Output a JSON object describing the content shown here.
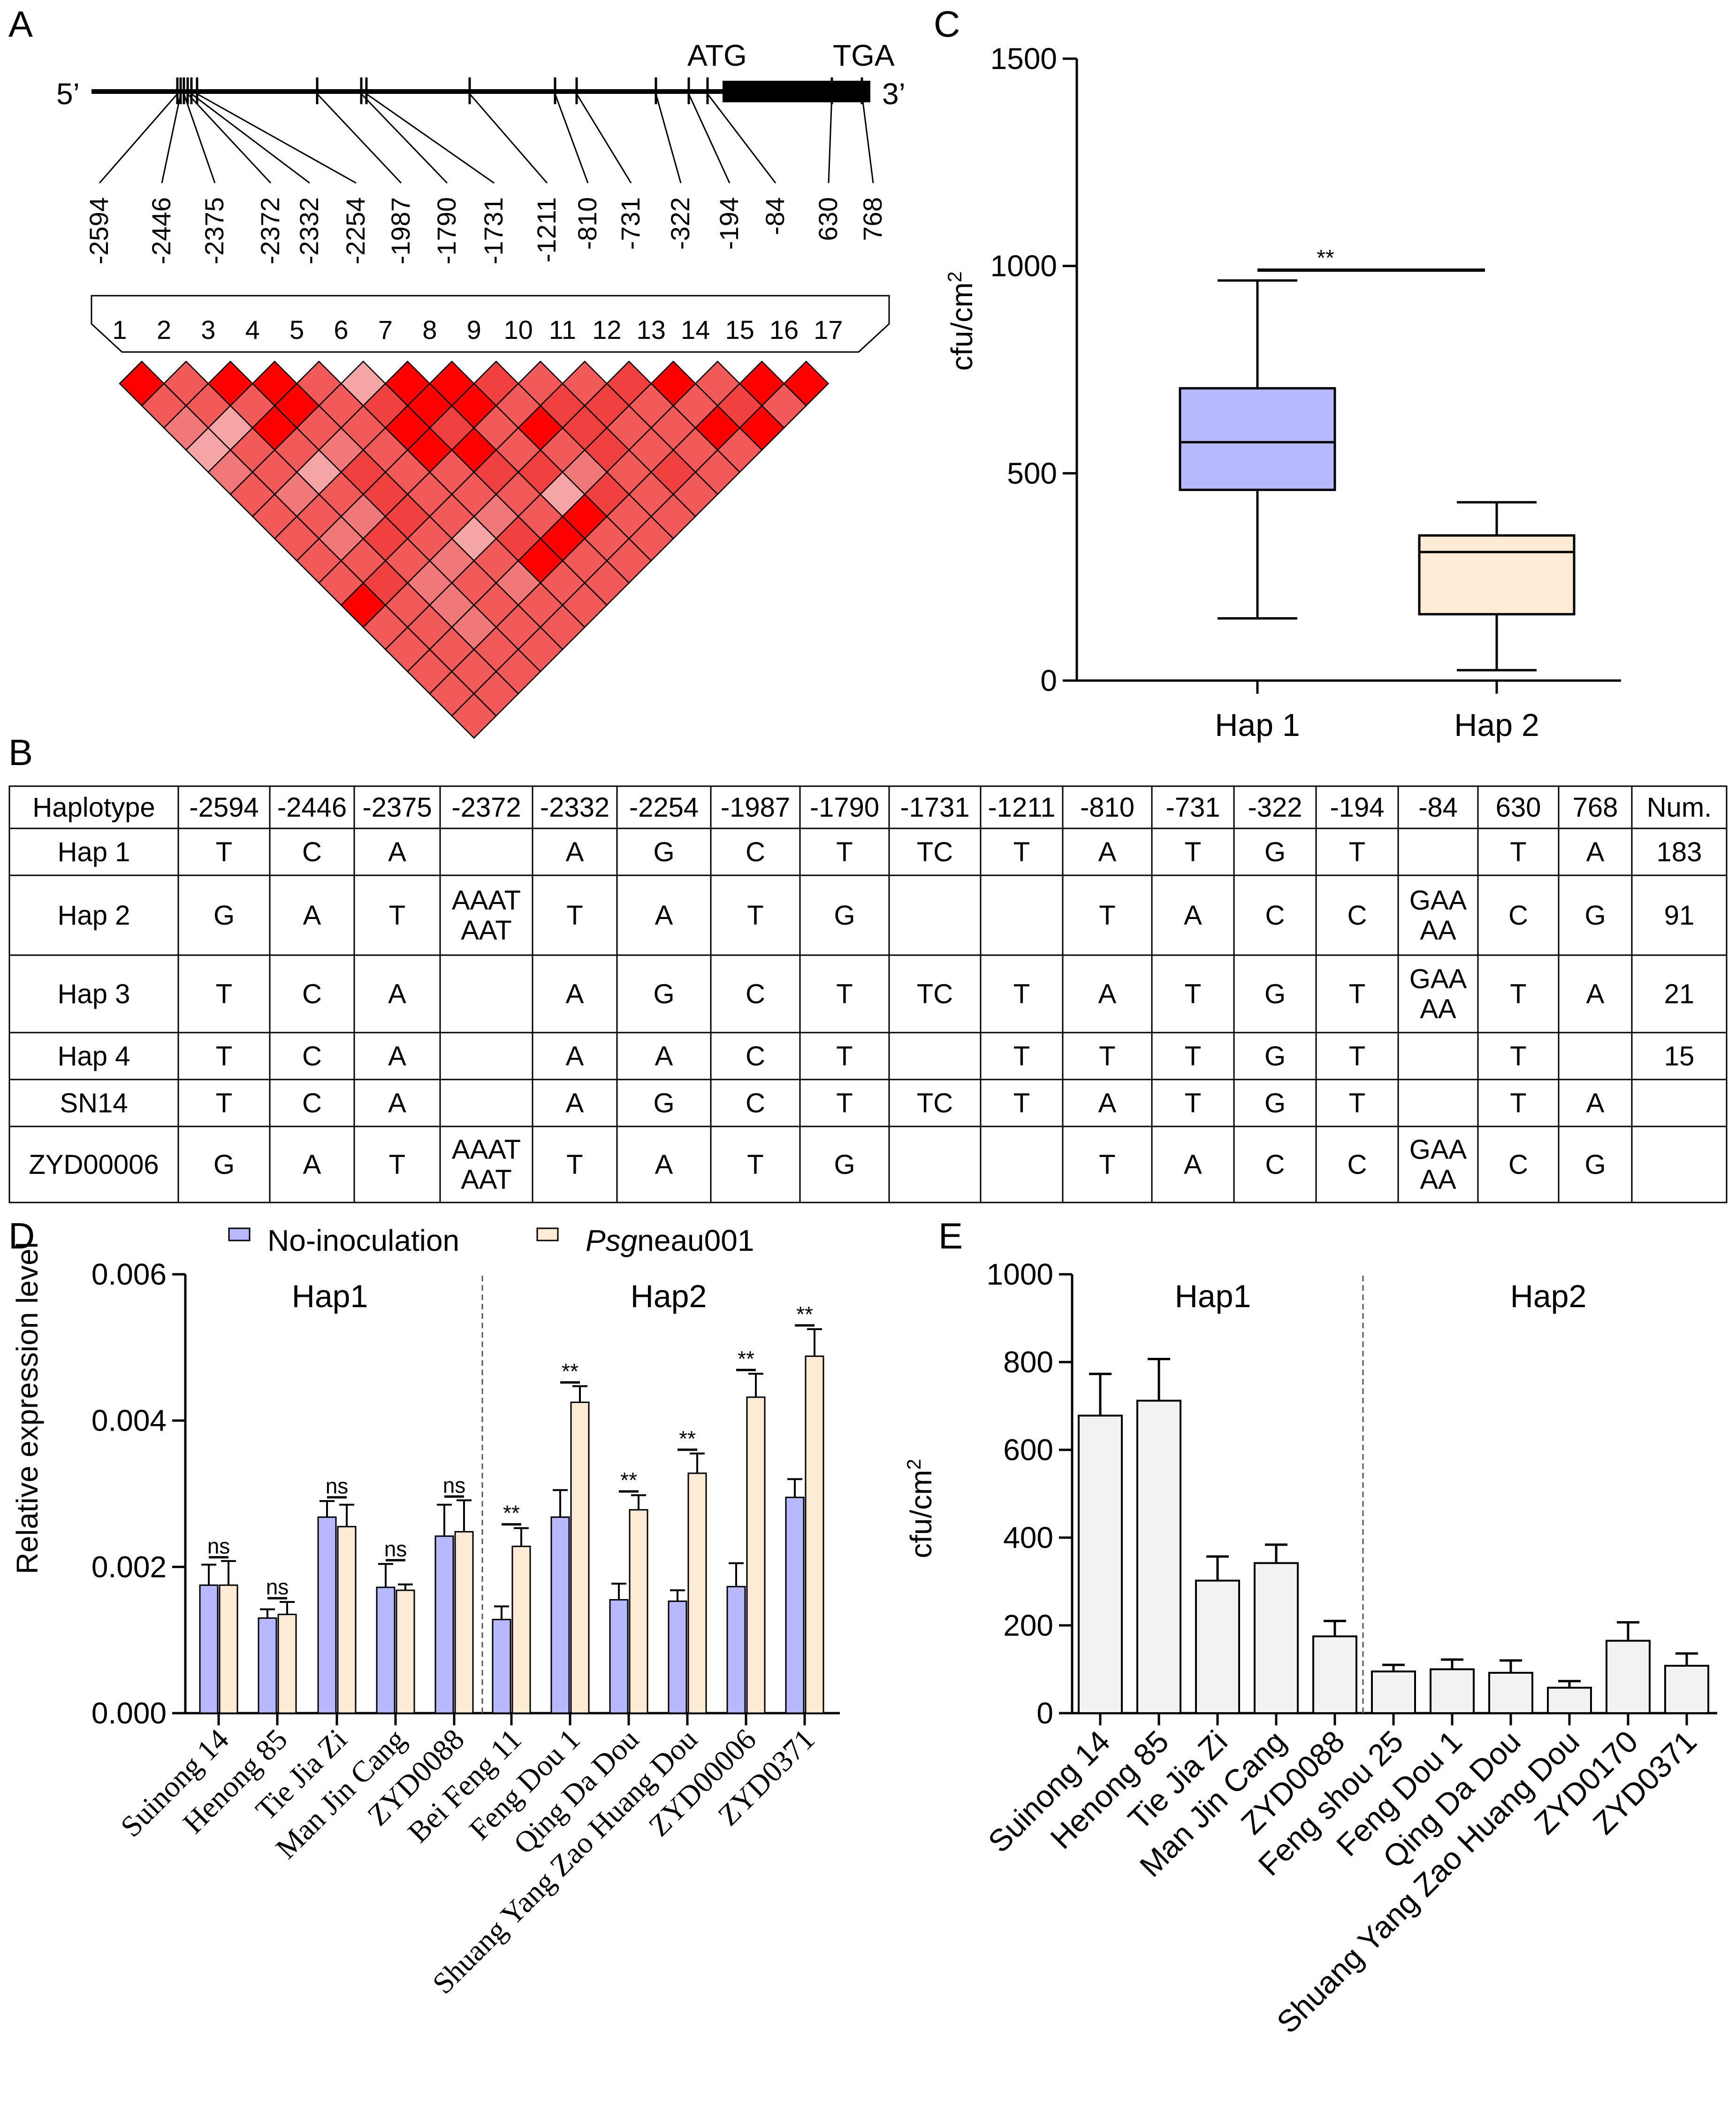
{
  "colors": {
    "hap1_fill": "#b8b8ff",
    "hap2_fill": "#fdebd6",
    "ld_strong": "#ff0000",
    "ld_mid": "#f04040",
    "ld_medium": "#f25a5a",
    "ld_light": "#f07878",
    "ld_pale": "#f5a5a5",
    "bar_gray": "#f2f2f2"
  },
  "panel_a": {
    "letter": "A",
    "five_prime": "5’",
    "three_prime": "3’",
    "atg": "ATG",
    "tga": "TGA",
    "positions": [
      "-2594",
      "-2446",
      "-2375",
      "-2372",
      "-2332",
      "-2254",
      "-1987",
      "-1790",
      "-1731",
      "-1211",
      "-810",
      "-731",
      "-322",
      "-194",
      "-84",
      "630",
      "768"
    ],
    "marker_numbers": [
      "1",
      "2",
      "3",
      "4",
      "5",
      "6",
      "7",
      "8",
      "9",
      "10",
      "11",
      "12",
      "13",
      "14",
      "15",
      "16",
      "17"
    ],
    "ld_matrix": [
      [
        "ld_strong",
        "ld_medium",
        "ld_strong",
        "ld_strong",
        "ld_medium",
        "ld_pale",
        "ld_strong",
        "ld_strong",
        "ld_mid",
        "ld_medium",
        "ld_medium",
        "ld_mid",
        "ld_strong",
        "ld_medium",
        "ld_strong",
        "ld_strong"
      ],
      [
        "ld_medium",
        "ld_medium",
        "ld_medium",
        "ld_strong",
        "ld_medium",
        "ld_mid",
        "ld_strong",
        "ld_strong",
        "ld_medium",
        "ld_mid",
        "ld_mid",
        "ld_medium",
        "ld_medium",
        "ld_mid",
        "ld_medium"
      ],
      [
        "ld_light",
        "ld_pale",
        "ld_strong",
        "ld_medium",
        "ld_medium",
        "ld_strong",
        "ld_mid",
        "ld_medium",
        "ld_strong",
        "ld_mid",
        "ld_medium",
        "ld_medium",
        "ld_strong",
        "ld_strong"
      ],
      [
        "ld_pale",
        "ld_medium",
        "ld_medium",
        "ld_light",
        "ld_medium",
        "ld_strong",
        "ld_strong",
        "ld_medium",
        "ld_medium",
        "ld_mid",
        "ld_medium",
        "ld_medium",
        "ld_medium"
      ],
      [
        "ld_light",
        "ld_medium",
        "ld_pale",
        "ld_mid",
        "ld_medium",
        "ld_medium",
        "ld_mid",
        "ld_mid",
        "ld_light",
        "ld_medium",
        "ld_mid",
        "ld_medium"
      ],
      [
        "ld_medium",
        "ld_light",
        "ld_medium",
        "ld_mid",
        "ld_medium",
        "ld_medium",
        "ld_medium",
        "ld_pale",
        "ld_mid",
        "ld_medium",
        "ld_medium"
      ],
      [
        "ld_medium",
        "ld_medium",
        "ld_light",
        "ld_mid",
        "ld_medium",
        "ld_light",
        "ld_medium",
        "ld_strong",
        "ld_medium",
        "ld_medium"
      ],
      [
        "ld_medium",
        "ld_light",
        "ld_mid",
        "ld_medium",
        "ld_pale",
        "ld_mid",
        "ld_strong",
        "ld_medium",
        "ld_medium"
      ],
      [
        "ld_medium",
        "ld_medium",
        "ld_medium",
        "ld_light",
        "ld_medium",
        "ld_strong",
        "ld_medium",
        "ld_medium"
      ],
      [
        "ld_medium",
        "ld_mid",
        "ld_light",
        "ld_medium",
        "ld_light",
        "ld_medium",
        "ld_medium"
      ],
      [
        "ld_strong",
        "ld_medium",
        "ld_light",
        "ld_medium",
        "ld_medium",
        "ld_medium"
      ],
      [
        "ld_medium",
        "ld_medium",
        "ld_light",
        "ld_medium",
        "ld_medium"
      ],
      [
        "ld_medium",
        "ld_medium",
        "ld_medium",
        "ld_medium"
      ],
      [
        "ld_medium",
        "ld_medium",
        "ld_medium"
      ],
      [
        "ld_medium",
        "ld_medium"
      ],
      [
        "ld_medium"
      ]
    ]
  },
  "panel_b": {
    "letter": "B",
    "headers": [
      "Haplotype",
      "-2594",
      "-2446",
      "-2375",
      "-2372",
      "-2332",
      "-2254",
      "-1987",
      "-1790",
      "-1731",
      "-1211",
      "-810",
      "-731",
      "-322",
      "-194",
      "-84",
      "630",
      "768",
      "Num."
    ],
    "rows": [
      [
        "Hap 1",
        "T",
        "C",
        "A",
        "",
        "A",
        "G",
        "C",
        "T",
        "TC",
        "T",
        "A",
        "T",
        "G",
        "T",
        "",
        "T",
        "A",
        "183"
      ],
      [
        "Hap 2",
        "G",
        "A",
        "T",
        "AAAT\nAAT",
        "T",
        "A",
        "T",
        "G",
        "",
        "",
        "T",
        "A",
        "C",
        "C",
        "GAA\nAA",
        "C",
        "G",
        "91"
      ],
      [
        "Hap 3",
        "T",
        "C",
        "A",
        "",
        "A",
        "G",
        "C",
        "T",
        "TC",
        "T",
        "A",
        "T",
        "G",
        "T",
        "GAA\nAA",
        "T",
        "A",
        "21"
      ],
      [
        "Hap 4",
        "T",
        "C",
        "A",
        "",
        "A",
        "A",
        "C",
        "T",
        "",
        "T",
        "T",
        "T",
        "G",
        "T",
        "",
        "T",
        "",
        "15"
      ],
      [
        "SN14",
        "T",
        "C",
        "A",
        "",
        "A",
        "G",
        "C",
        "T",
        "TC",
        "T",
        "A",
        "T",
        "G",
        "T",
        "",
        "T",
        "A",
        ""
      ],
      [
        "ZYD00006",
        "G",
        "A",
        "T",
        "AAAT\nAAT",
        "T",
        "A",
        "T",
        "G",
        "",
        "",
        "T",
        "A",
        "C",
        "C",
        "GAA\nAA",
        "C",
        "G",
        ""
      ]
    ]
  },
  "chart_data": [
    {
      "panel": "C",
      "type": "box",
      "categories": [
        "Hap 1",
        "Hap 2"
      ],
      "boxes": [
        {
          "name": "Hap 1",
          "min": 150,
          "q1": 460,
          "median": 575,
          "q3": 705,
          "max": 965
        },
        {
          "name": "Hap 2",
          "min": 25,
          "q1": 160,
          "median": 310,
          "q3": 350,
          "max": 430
        }
      ],
      "ylabel": "cfu/cm",
      "ylabel_sup": "2",
      "ylim": [
        0,
        1500
      ],
      "yticks": [
        "0",
        "500",
        "1000",
        "1500"
      ],
      "significance": "**"
    },
    {
      "panel": "D",
      "type": "bar",
      "ylabel": "Relative expression level",
      "ylim": [
        0,
        0.006
      ],
      "yticks": [
        "0.000",
        "0.002",
        "0.004",
        "0.006"
      ],
      "legend": {
        "series1": "No-inoculation",
        "series2_italic": "Psg",
        "series2_rest": "neau001"
      },
      "groups": [
        "Hap1",
        "Hap2"
      ],
      "categories": [
        "Suinong 14",
        "Henong 85",
        "Tie Jia Zi",
        "Man Jin Cang",
        "ZYD0088",
        "Bei Feng 11",
        "Feng Dou 1",
        "Qing Da Dou",
        "Shuang Yang Zao Huang Dou",
        "ZYD00006",
        "ZYD0371"
      ],
      "series": [
        {
          "name": "No-inoculation",
          "values": [
            0.00175,
            0.0013,
            0.00268,
            0.00172,
            0.00242,
            0.00128,
            0.00268,
            0.00155,
            0.00153,
            0.00173,
            0.00295
          ],
          "errors": [
            0.00028,
            0.00012,
            0.00022,
            0.00032,
            0.00043,
            0.00018,
            0.00037,
            0.00022,
            0.00015,
            0.00032,
            0.00025
          ]
        },
        {
          "name": "Psgneau001",
          "values": [
            0.00175,
            0.00135,
            0.00255,
            0.00168,
            0.00248,
            0.00228,
            0.00425,
            0.00278,
            0.00328,
            0.00432,
            0.00488
          ],
          "errors": [
            0.00033,
            0.00017,
            0.0003,
            8e-05,
            0.00043,
            0.00025,
            0.00022,
            0.0002,
            0.00027,
            0.00032,
            0.00037
          ]
        }
      ],
      "significance": [
        "ns",
        "ns",
        "ns",
        "ns",
        "ns",
        "**",
        "**",
        "**",
        "**",
        "**",
        "**"
      ]
    },
    {
      "panel": "E",
      "type": "bar",
      "ylabel": "cfu/cm",
      "ylabel_sup": "2",
      "ylim": [
        0,
        1000
      ],
      "yticks": [
        "0",
        "200",
        "400",
        "600",
        "800",
        "1000"
      ],
      "groups": [
        "Hap1",
        "Hap2"
      ],
      "categories": [
        "Suinong 14",
        "Henong 85",
        "Tie Jia Zi",
        "Man Jin Cang",
        "ZYD0088",
        "Feng shou 25",
        "Feng Dou 1",
        "Qing Da Dou",
        "Shuang Yang Zao Huang Dou",
        "ZYD0170",
        "ZYD0371"
      ],
      "values": [
        678,
        712,
        302,
        342,
        175,
        95,
        100,
        92,
        58,
        165,
        108
      ],
      "errors": [
        95,
        95,
        55,
        42,
        35,
        15,
        22,
        28,
        15,
        42,
        28
      ]
    }
  ]
}
